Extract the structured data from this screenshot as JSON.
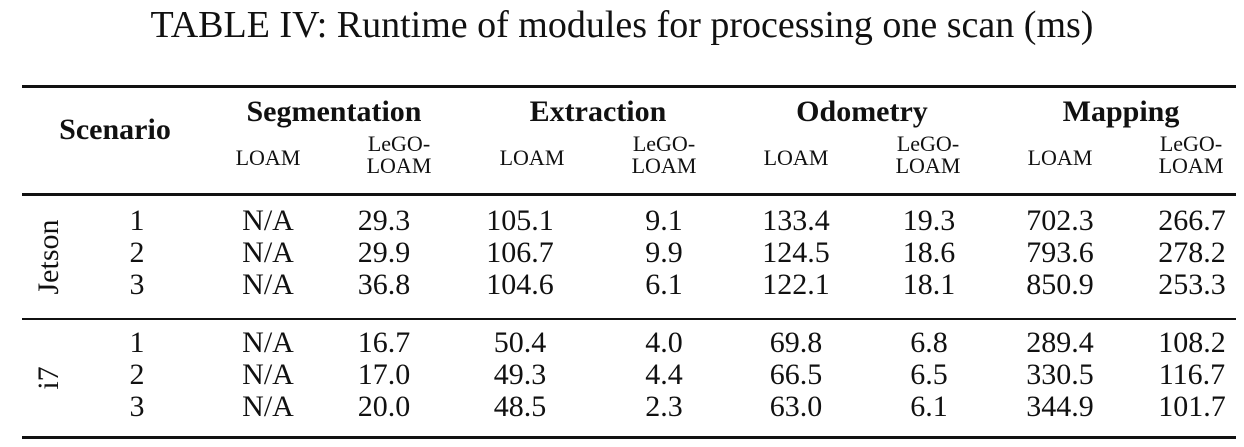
{
  "caption": "TABLE IV: Runtime of modules for processing one scan (ms)",
  "header": {
    "scenario": "Scenario",
    "groups": [
      "Segmentation",
      "Extraction",
      "Odometry",
      "Mapping"
    ],
    "sub": {
      "loam": "LOAM",
      "lego_line1": "LeGO-",
      "lego_line2": "LOAM"
    }
  },
  "sections": [
    {
      "label": "Jetson",
      "rows": [
        [
          "1",
          "N/A",
          "29.3",
          "105.1",
          "9.1",
          "133.4",
          "19.3",
          "702.3",
          "266.7"
        ],
        [
          "2",
          "N/A",
          "29.9",
          "106.7",
          "9.9",
          "124.5",
          "18.6",
          "793.6",
          "278.2"
        ],
        [
          "3",
          "N/A",
          "36.8",
          "104.6",
          "6.1",
          "122.1",
          "18.1",
          "850.9",
          "253.3"
        ]
      ]
    },
    {
      "label": "i7",
      "rows": [
        [
          "1",
          "N/A",
          "16.7",
          "50.4",
          "4.0",
          "69.8",
          "6.8",
          "289.4",
          "108.2"
        ],
        [
          "2",
          "N/A",
          "17.0",
          "49.3",
          "4.4",
          "66.5",
          "6.5",
          "330.5",
          "116.7"
        ],
        [
          "3",
          "N/A",
          "20.0",
          "48.5",
          "2.3",
          "63.0",
          "6.1",
          "344.9",
          "101.7"
        ]
      ]
    }
  ]
}
